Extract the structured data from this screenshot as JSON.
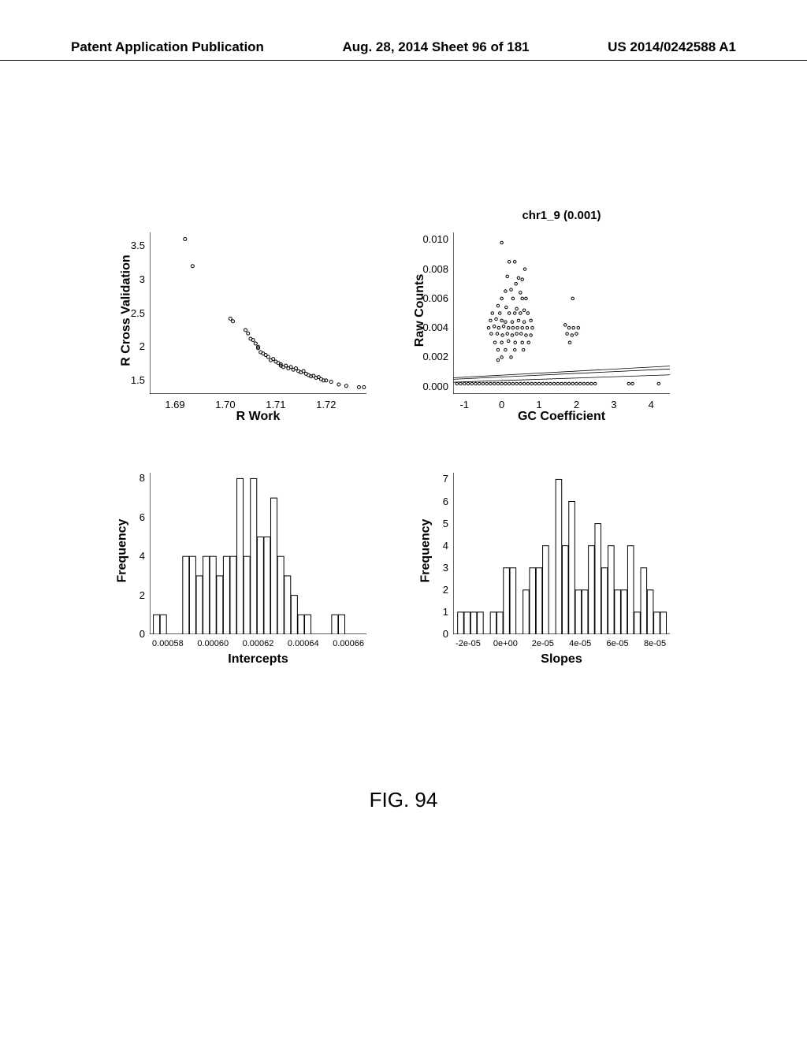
{
  "header": {
    "left": "Patent Application Publication",
    "center": "Aug. 28, 2014  Sheet 96 of 181",
    "right": "US 2014/0242588 A1"
  },
  "figure_caption": "FIG. 94",
  "panel_tr_title": "chr1_9 (0.001)",
  "panels": {
    "topleft": {
      "type": "scatter",
      "ylabel": "R Cross Validation",
      "xlabel": "R Work",
      "xlim": [
        1.685,
        1.728
      ],
      "ylim": [
        1.3,
        3.7
      ],
      "xticks": [
        1.69,
        1.7,
        1.71,
        1.72
      ],
      "yticks": [
        1.5,
        2.0,
        2.5,
        3.0,
        3.5
      ],
      "marker_color": "#000000",
      "marker_size": 4,
      "background": "#ffffff",
      "points": [
        [
          1.692,
          3.6
        ],
        [
          1.6935,
          3.2
        ],
        [
          1.701,
          2.42
        ],
        [
          1.7015,
          2.38
        ],
        [
          1.704,
          2.25
        ],
        [
          1.7045,
          2.2
        ],
        [
          1.705,
          2.12
        ],
        [
          1.7055,
          2.1
        ],
        [
          1.706,
          2.05
        ],
        [
          1.7065,
          2.0
        ],
        [
          1.7065,
          1.98
        ],
        [
          1.707,
          1.92
        ],
        [
          1.7075,
          1.9
        ],
        [
          1.708,
          1.88
        ],
        [
          1.7085,
          1.85
        ],
        [
          1.709,
          1.8
        ],
        [
          1.7095,
          1.82
        ],
        [
          1.71,
          1.78
        ],
        [
          1.7105,
          1.76
        ],
        [
          1.711,
          1.72
        ],
        [
          1.711,
          1.74
        ],
        [
          1.7115,
          1.7
        ],
        [
          1.712,
          1.72
        ],
        [
          1.7125,
          1.68
        ],
        [
          1.713,
          1.7
        ],
        [
          1.7135,
          1.66
        ],
        [
          1.714,
          1.68
        ],
        [
          1.7145,
          1.64
        ],
        [
          1.715,
          1.62
        ],
        [
          1.7155,
          1.64
        ],
        [
          1.716,
          1.6
        ],
        [
          1.7165,
          1.58
        ],
        [
          1.717,
          1.56
        ],
        [
          1.7175,
          1.57
        ],
        [
          1.718,
          1.54
        ],
        [
          1.7185,
          1.55
        ],
        [
          1.719,
          1.52
        ],
        [
          1.7195,
          1.5
        ],
        [
          1.72,
          1.5
        ],
        [
          1.721,
          1.48
        ],
        [
          1.7225,
          1.44
        ],
        [
          1.724,
          1.42
        ],
        [
          1.7265,
          1.4
        ],
        [
          1.7275,
          1.4
        ]
      ]
    },
    "topright": {
      "type": "scatter",
      "ylabel": "Raw Counts",
      "xlabel": "GC Coefficient",
      "xlim": [
        -1.3,
        4.5
      ],
      "ylim": [
        -0.0005,
        0.0105
      ],
      "xticks": [
        -1,
        0,
        1,
        2,
        3,
        4
      ],
      "yticks": [
        0.0,
        0.002,
        0.004,
        0.006,
        0.008,
        0.01
      ],
      "marker_color": "#000000",
      "marker_size": 3.5,
      "background": "#ffffff",
      "lines": [
        {
          "y1": 0.0005,
          "y2": 0.0012,
          "color": "#000000"
        },
        {
          "y1": 0.0003,
          "y2": 0.0008,
          "color": "#000000"
        },
        {
          "y1": 0.0006,
          "y2": 0.0014,
          "color": "#000000"
        }
      ],
      "points": [
        [
          0.0,
          0.0098
        ],
        [
          0.2,
          0.0085
        ],
        [
          0.35,
          0.0085
        ],
        [
          0.62,
          0.008
        ],
        [
          0.15,
          0.0075
        ],
        [
          0.45,
          0.0074
        ],
        [
          0.55,
          0.0073
        ],
        [
          0.38,
          0.007
        ],
        [
          0.1,
          0.0065
        ],
        [
          0.25,
          0.0066
        ],
        [
          0.5,
          0.0064
        ],
        [
          0.0,
          0.006
        ],
        [
          0.3,
          0.006
        ],
        [
          0.55,
          0.006
        ],
        [
          0.65,
          0.006
        ],
        [
          1.9,
          0.006
        ],
        [
          -0.1,
          0.0055
        ],
        [
          0.12,
          0.0054
        ],
        [
          0.4,
          0.0053
        ],
        [
          0.6,
          0.0052
        ],
        [
          -0.25,
          0.005
        ],
        [
          -0.05,
          0.005
        ],
        [
          0.2,
          0.005
        ],
        [
          0.35,
          0.005
        ],
        [
          0.5,
          0.005
        ],
        [
          0.7,
          0.005
        ],
        [
          -0.3,
          0.0045
        ],
        [
          -0.15,
          0.0046
        ],
        [
          0.0,
          0.0045
        ],
        [
          0.1,
          0.0044
        ],
        [
          0.28,
          0.0044
        ],
        [
          0.45,
          0.0045
        ],
        [
          0.6,
          0.0044
        ],
        [
          0.78,
          0.0045
        ],
        [
          -0.35,
          0.004
        ],
        [
          -0.2,
          0.0041
        ],
        [
          -0.08,
          0.004
        ],
        [
          0.05,
          0.0041
        ],
        [
          0.18,
          0.004
        ],
        [
          0.3,
          0.004
        ],
        [
          0.42,
          0.004
        ],
        [
          0.55,
          0.004
        ],
        [
          0.68,
          0.004
        ],
        [
          0.82,
          0.004
        ],
        [
          1.7,
          0.0042
        ],
        [
          1.8,
          0.004
        ],
        [
          1.92,
          0.004
        ],
        [
          2.05,
          0.004
        ],
        [
          -0.28,
          0.0036
        ],
        [
          -0.12,
          0.0036
        ],
        [
          0.02,
          0.0035
        ],
        [
          0.15,
          0.0036
        ],
        [
          0.28,
          0.0035
        ],
        [
          0.4,
          0.0036
        ],
        [
          0.52,
          0.0036
        ],
        [
          0.65,
          0.0035
        ],
        [
          0.78,
          0.0035
        ],
        [
          1.75,
          0.0036
        ],
        [
          1.88,
          0.0035
        ],
        [
          2.0,
          0.0036
        ],
        [
          -0.18,
          0.003
        ],
        [
          0.0,
          0.003
        ],
        [
          0.18,
          0.0031
        ],
        [
          0.36,
          0.003
        ],
        [
          0.55,
          0.003
        ],
        [
          0.72,
          0.003
        ],
        [
          1.82,
          0.003
        ],
        [
          -0.1,
          0.0025
        ],
        [
          0.1,
          0.0025
        ],
        [
          0.35,
          0.0025
        ],
        [
          0.58,
          0.0025
        ],
        [
          0.0,
          0.002
        ],
        [
          0.25,
          0.002
        ],
        [
          -0.1,
          0.0018
        ],
        [
          -1.2,
          0.0002
        ],
        [
          -1.1,
          0.0002
        ],
        [
          -1.0,
          0.0002
        ],
        [
          -0.9,
          0.0002
        ],
        [
          -0.8,
          0.0002
        ],
        [
          -0.7,
          0.0002
        ],
        [
          -0.6,
          0.0002
        ],
        [
          -0.5,
          0.0002
        ],
        [
          -0.4,
          0.0002
        ],
        [
          -0.3,
          0.0002
        ],
        [
          -0.2,
          0.0002
        ],
        [
          -0.1,
          0.0002
        ],
        [
          0.0,
          0.0002
        ],
        [
          0.1,
          0.0002
        ],
        [
          0.2,
          0.0002
        ],
        [
          0.3,
          0.0002
        ],
        [
          0.4,
          0.0002
        ],
        [
          0.5,
          0.0002
        ],
        [
          0.6,
          0.0002
        ],
        [
          0.7,
          0.0002
        ],
        [
          0.8,
          0.0002
        ],
        [
          0.9,
          0.0002
        ],
        [
          1.0,
          0.0002
        ],
        [
          1.1,
          0.0002
        ],
        [
          1.2,
          0.0002
        ],
        [
          1.3,
          0.0002
        ],
        [
          1.4,
          0.0002
        ],
        [
          1.5,
          0.0002
        ],
        [
          1.6,
          0.0002
        ],
        [
          1.7,
          0.0002
        ],
        [
          1.8,
          0.0002
        ],
        [
          1.9,
          0.0002
        ],
        [
          2.0,
          0.0002
        ],
        [
          2.1,
          0.0002
        ],
        [
          2.2,
          0.0002
        ],
        [
          2.3,
          0.0002
        ],
        [
          2.4,
          0.0002
        ],
        [
          2.5,
          0.0002
        ],
        [
          3.4,
          0.0002
        ],
        [
          3.5,
          0.0002
        ],
        [
          4.2,
          0.0002
        ]
      ]
    },
    "bottomleft": {
      "type": "histogram",
      "ylabel": "Frequency",
      "xlabel": "Intercepts",
      "xlim": [
        0.000572,
        0.000668
      ],
      "ylim": [
        0,
        8.3
      ],
      "xticks": [
        "0.00058",
        "0.00060",
        "0.00062",
        "0.00064",
        "0.00066"
      ],
      "xtick_values": [
        0.00058,
        0.0006,
        0.00062,
        0.00064,
        0.00066
      ],
      "yticks": [
        0,
        2,
        4,
        6,
        8
      ],
      "bar_color": "#ffffff",
      "bar_border": "#000000",
      "background": "#ffffff",
      "bar_width": 2.8e-06,
      "bars": [
        [
          0.000575,
          1
        ],
        [
          0.000578,
          1
        ],
        [
          0.000582,
          0
        ],
        [
          0.000585,
          0
        ],
        [
          0.000588,
          4
        ],
        [
          0.000591,
          4
        ],
        [
          0.000594,
          3
        ],
        [
          0.000597,
          4
        ],
        [
          0.0006,
          4
        ],
        [
          0.000603,
          3
        ],
        [
          0.000606,
          4
        ],
        [
          0.000609,
          4
        ],
        [
          0.000612,
          8
        ],
        [
          0.000615,
          4
        ],
        [
          0.000618,
          8
        ],
        [
          0.000621,
          5
        ],
        [
          0.000624,
          5
        ],
        [
          0.000627,
          7
        ],
        [
          0.00063,
          4
        ],
        [
          0.000633,
          3
        ],
        [
          0.000636,
          2
        ],
        [
          0.000639,
          1
        ],
        [
          0.000642,
          1
        ],
        [
          0.000645,
          0
        ],
        [
          0.000648,
          0
        ],
        [
          0.000651,
          0
        ],
        [
          0.000654,
          1
        ],
        [
          0.000657,
          1
        ]
      ]
    },
    "bottomright": {
      "type": "histogram",
      "ylabel": "Frequency",
      "xlabel": "Slopes",
      "xlim": [
        -2.8e-05,
        8.8e-05
      ],
      "ylim": [
        0,
        7.3
      ],
      "xticks": [
        "-2e-05",
        "0e+00",
        "2e-05",
        "4e-05",
        "6e-05",
        "8e-05"
      ],
      "xtick_values": [
        -2e-05,
        0,
        2e-05,
        4e-05,
        6e-05,
        8e-05
      ],
      "yticks": [
        0,
        1,
        2,
        3,
        4,
        5,
        6,
        7
      ],
      "bar_color": "#ffffff",
      "bar_border": "#000000",
      "background": "#ffffff",
      "bar_width": 3.2e-06,
      "bars": [
        [
          -2.4e-05,
          1
        ],
        [
          -2.05e-05,
          1
        ],
        [
          -1.7e-05,
          1
        ],
        [
          -1.35e-05,
          1
        ],
        [
          -1e-05,
          0
        ],
        [
          -6.5e-06,
          1
        ],
        [
          -3e-06,
          1
        ],
        [
          5e-07,
          3
        ],
        [
          4e-06,
          3
        ],
        [
          7.5e-06,
          0
        ],
        [
          1.1e-05,
          2
        ],
        [
          1.45e-05,
          3
        ],
        [
          1.8e-05,
          3
        ],
        [
          2.15e-05,
          4
        ],
        [
          2.5e-05,
          0
        ],
        [
          2.85e-05,
          7
        ],
        [
          3.2e-05,
          4
        ],
        [
          3.55e-05,
          6
        ],
        [
          3.9e-05,
          2
        ],
        [
          4.25e-05,
          2
        ],
        [
          4.6e-05,
          4
        ],
        [
          4.95e-05,
          5
        ],
        [
          5.3e-05,
          3
        ],
        [
          5.65e-05,
          4
        ],
        [
          6e-05,
          2
        ],
        [
          6.35e-05,
          2
        ],
        [
          6.7e-05,
          4
        ],
        [
          7.05e-05,
          1
        ],
        [
          7.4e-05,
          3
        ],
        [
          7.75e-05,
          2
        ],
        [
          8.1e-05,
          1
        ],
        [
          8.45e-05,
          1
        ]
      ]
    }
  }
}
